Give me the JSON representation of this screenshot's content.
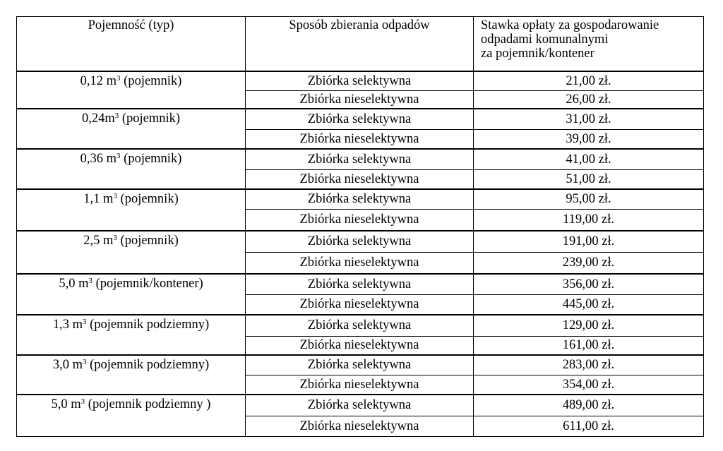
{
  "headers": {
    "capacity": "Pojemność (typ)",
    "method": "Sposób zbierania odpadów",
    "rate_lines": [
      "Stawka opłaty za gospodarowanie",
      "odpadami komunalnymi",
      "za pojemnik/kontener"
    ]
  },
  "methods": {
    "selective": "Zbiórka selektywna",
    "nonselective": "Zbiórka nieselektywna"
  },
  "rows": [
    {
      "volume": "0,12 m",
      "sup": "3",
      "type": " (pojemnik)",
      "selective": "21,00 zł.",
      "nonselective": "26,00 zł."
    },
    {
      "volume": "0,24m",
      "sup": "3",
      "type": " (pojemnik)",
      "selective": "31,00 zł.",
      "nonselective": "39,00 zł."
    },
    {
      "volume": "0,36 m",
      "sup": "3",
      "type": " (pojemnik)",
      "selective": "41,00 zł.",
      "nonselective": "51,00 zł."
    },
    {
      "volume": "1,1 m",
      "sup": "3",
      "type": " (pojemnik)",
      "selective": "95,00 zł.",
      "nonselective": "119,00 zł."
    },
    {
      "volume": "2,5 m",
      "sup": "3",
      "type": " (pojemnik)",
      "selective": "191,00 zł.",
      "nonselective": "239,00 zł."
    },
    {
      "volume": "5,0 m",
      "sup": "3",
      "type": " (pojemnik/kontener)",
      "selective": "356,00 zł.",
      "nonselective": "445,00 zł."
    },
    {
      "volume": "1,3 m",
      "sup": "3",
      "type": " (pojemnik podziemny)",
      "selective": "129,00 zł.",
      "nonselective": "161,00 zł."
    },
    {
      "volume": "3,0 m",
      "sup": "3",
      "type": " (pojemnik podziemny)",
      "selective": "283,00 zł.",
      "nonselective": "354,00 zł."
    },
    {
      "volume": "5,0 m",
      "sup": "3",
      "type": " (pojemnik podziemny )",
      "selective": "489,00 zł.",
      "nonselective": "611,00 zł."
    }
  ]
}
